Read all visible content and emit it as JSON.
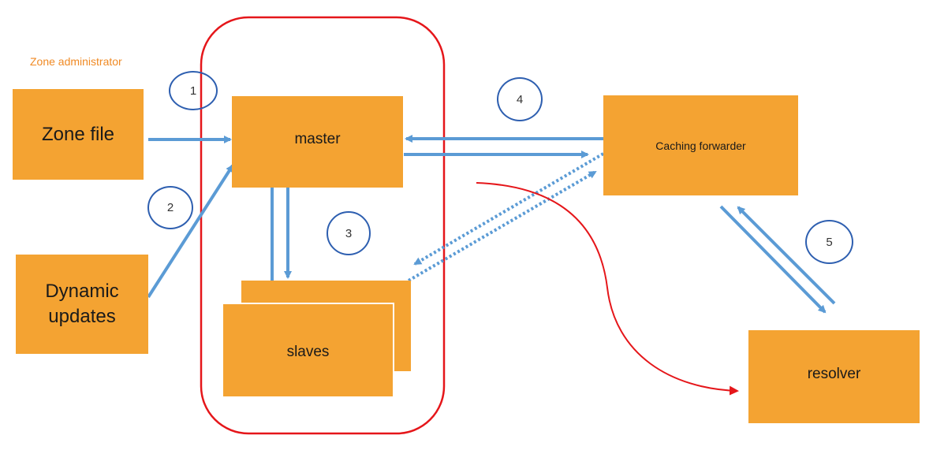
{
  "colors": {
    "box_fill": "#f4a332",
    "arrow": "#5b9bd5",
    "step_circle": "#2e5fb0",
    "highlight": "#e5161a",
    "admin_label": "#f08a24"
  },
  "zone_admin_label": "Zone administrator",
  "nodes": {
    "zone_file": "Zone file",
    "dynamic_updates": "Dynamic updates",
    "master": "master",
    "slaves": "slaves",
    "caching_forwarder": "Caching forwarder",
    "resolver": "resolver"
  },
  "steps": [
    "1",
    "2",
    "3",
    "4",
    "5"
  ]
}
